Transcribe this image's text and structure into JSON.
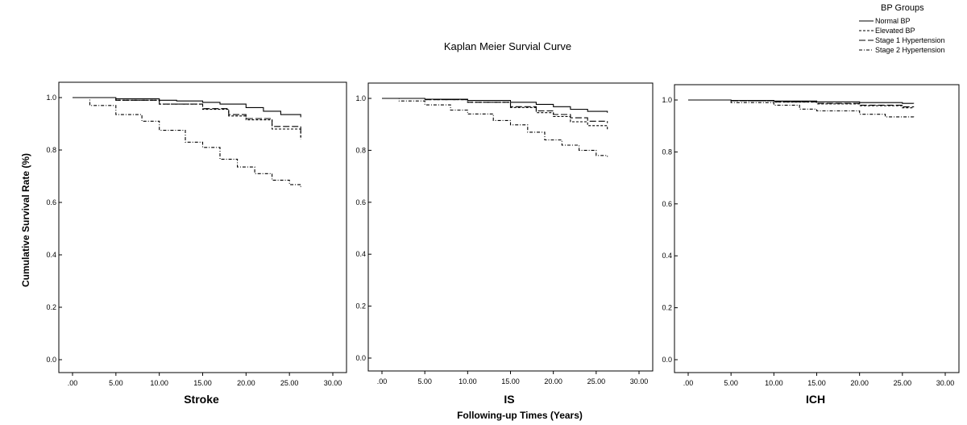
{
  "figure": {
    "title": "Kaplan Meier Survial Curve",
    "ylabel": "Cumulative Survival Rate (%)",
    "xlabel": "Following-up Times (Years)"
  },
  "legend": {
    "title": "BP Groups",
    "placement": "top-right",
    "items": [
      "Normal BP",
      "Elevated BP",
      "Stage 1 Hypertension",
      "Stage 2 Hypertension"
    ]
  },
  "chart_data": [
    {
      "type": "line",
      "panel": "Stroke",
      "xlim": [
        0,
        30
      ],
      "ylim": [
        0,
        1
      ],
      "x_ticks": [
        ".00",
        "5.00",
        "10.00",
        "15.00",
        "20.00",
        "25.00",
        "30.00"
      ],
      "y_ticks": [
        "0.0",
        "0.2",
        "0.4",
        "0.6",
        "0.8",
        "1.0"
      ],
      "series": [
        {
          "name": "Normal BP",
          "x": [
            0,
            5,
            10,
            12,
            15,
            17,
            20,
            22,
            24,
            26.3
          ],
          "y": [
            1.0,
            0.995,
            0.99,
            0.987,
            0.982,
            0.975,
            0.962,
            0.948,
            0.935,
            0.925
          ]
        },
        {
          "name": "Elevated BP",
          "x": [
            0,
            5,
            10,
            15,
            18,
            20,
            23,
            26.3
          ],
          "y": [
            1.0,
            0.99,
            0.975,
            0.955,
            0.93,
            0.915,
            0.88,
            0.84
          ]
        },
        {
          "name": "Stage 1 Hypertension",
          "x": [
            0,
            5,
            10,
            15,
            18,
            20,
            23,
            26.3
          ],
          "y": [
            1.0,
            0.99,
            0.975,
            0.958,
            0.935,
            0.92,
            0.89,
            0.85
          ]
        },
        {
          "name": "Stage 2 Hypertension",
          "x": [
            0,
            2,
            5,
            8,
            10,
            13,
            15,
            17,
            19,
            21,
            23,
            25,
            26.3
          ],
          "y": [
            1.0,
            0.97,
            0.935,
            0.91,
            0.875,
            0.83,
            0.81,
            0.765,
            0.735,
            0.71,
            0.685,
            0.668,
            0.658
          ]
        }
      ]
    },
    {
      "type": "line",
      "panel": "IS",
      "xlim": [
        0,
        30
      ],
      "ylim": [
        0,
        1
      ],
      "x_ticks": [
        ".00",
        "5.00",
        "10.00",
        "15.00",
        "20.00",
        "25.00",
        "30.00"
      ],
      "y_ticks": [
        "0.0",
        "0.2",
        "0.4",
        "0.6",
        "0.8",
        "1.0"
      ],
      "series": [
        {
          "name": "Normal BP",
          "x": [
            0,
            5,
            10,
            15,
            18,
            20,
            22,
            24,
            26.3
          ],
          "y": [
            1.0,
            0.997,
            0.992,
            0.985,
            0.977,
            0.968,
            0.958,
            0.95,
            0.945
          ]
        },
        {
          "name": "Elevated BP",
          "x": [
            0,
            5,
            10,
            15,
            18,
            20,
            22,
            24,
            26.3
          ],
          "y": [
            1.0,
            0.995,
            0.985,
            0.965,
            0.945,
            0.93,
            0.91,
            0.895,
            0.875
          ]
        },
        {
          "name": "Stage 1 Hypertension",
          "x": [
            0,
            5,
            10,
            15,
            18,
            20,
            22,
            24,
            26.3
          ],
          "y": [
            1.0,
            0.995,
            0.985,
            0.968,
            0.952,
            0.938,
            0.925,
            0.912,
            0.905
          ]
        },
        {
          "name": "Stage 2 Hypertension",
          "x": [
            0,
            2,
            5,
            8,
            10,
            13,
            15,
            17,
            19,
            21,
            23,
            25,
            26.3
          ],
          "y": [
            1.0,
            0.99,
            0.975,
            0.955,
            0.94,
            0.915,
            0.898,
            0.87,
            0.84,
            0.82,
            0.8,
            0.78,
            0.775
          ]
        }
      ]
    },
    {
      "type": "line",
      "panel": "ICH",
      "xlim": [
        0,
        30
      ],
      "ylim": [
        0,
        1
      ],
      "x_ticks": [
        ".00",
        "5.00",
        "10.00",
        "15.00",
        "20.00",
        "25.00",
        "30.00"
      ],
      "y_ticks": [
        "0.0",
        "0.2",
        "0.4",
        "0.6",
        "0.8",
        "1.0"
      ],
      "series": [
        {
          "name": "Normal BP",
          "x": [
            0,
            5,
            10,
            15,
            20,
            25,
            26.3
          ],
          "y": [
            1.0,
            0.998,
            0.996,
            0.993,
            0.99,
            0.987,
            0.986
          ]
        },
        {
          "name": "Elevated BP",
          "x": [
            0,
            5,
            10,
            15,
            20,
            25,
            26.3
          ],
          "y": [
            1.0,
            0.997,
            0.992,
            0.985,
            0.978,
            0.97,
            0.968
          ]
        },
        {
          "name": "Stage 1 Hypertension",
          "x": [
            0,
            5,
            10,
            15,
            20,
            25,
            26.3
          ],
          "y": [
            1.0,
            0.997,
            0.993,
            0.987,
            0.98,
            0.974,
            0.972
          ]
        },
        {
          "name": "Stage 2 Hypertension",
          "x": [
            0,
            5,
            10,
            13,
            15,
            20,
            23,
            26.3
          ],
          "y": [
            1.0,
            0.99,
            0.98,
            0.965,
            0.958,
            0.945,
            0.935,
            0.93
          ]
        }
      ]
    }
  ]
}
